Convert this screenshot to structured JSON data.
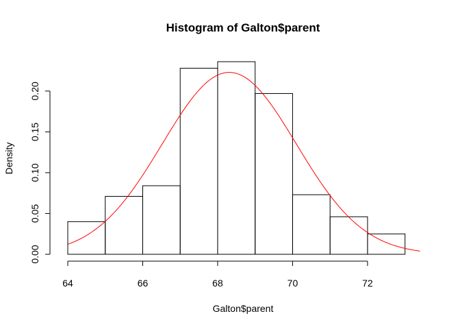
{
  "chart_data": {
    "type": "bar",
    "title": "Histogram of Galton$parent",
    "xlabel": "Galton$parent",
    "ylabel": "Density",
    "bins": [
      {
        "start": 64,
        "end": 65,
        "density": 0.04
      },
      {
        "start": 65,
        "end": 66,
        "density": 0.071
      },
      {
        "start": 66,
        "end": 67,
        "density": 0.084
      },
      {
        "start": 67,
        "end": 68,
        "density": 0.228
      },
      {
        "start": 68,
        "end": 69,
        "density": 0.236
      },
      {
        "start": 69,
        "end": 70,
        "density": 0.197
      },
      {
        "start": 70,
        "end": 71,
        "density": 0.073
      },
      {
        "start": 71,
        "end": 72,
        "density": 0.046
      },
      {
        "start": 72,
        "end": 73,
        "density": 0.025
      }
    ],
    "xlim": [
      64,
      73.7
    ],
    "ylim": [
      0,
      0.236
    ],
    "xticks": [
      64,
      66,
      68,
      70,
      72
    ],
    "xtick_labels": [
      "64",
      "66",
      "68",
      "70",
      "72"
    ],
    "yticks": [
      0,
      0.05,
      0.1,
      0.15,
      0.2
    ],
    "ytick_labels": [
      "0.00",
      "0.05",
      "0.10",
      "0.15",
      "0.20"
    ],
    "overlay_curve": {
      "type": "normal-density",
      "mean": 68.31,
      "sd": 1.79,
      "x_range": [
        64,
        73.4
      ],
      "color": "#ff0000"
    },
    "bar_fill": "none",
    "bar_stroke": "#000000",
    "grid": false
  }
}
